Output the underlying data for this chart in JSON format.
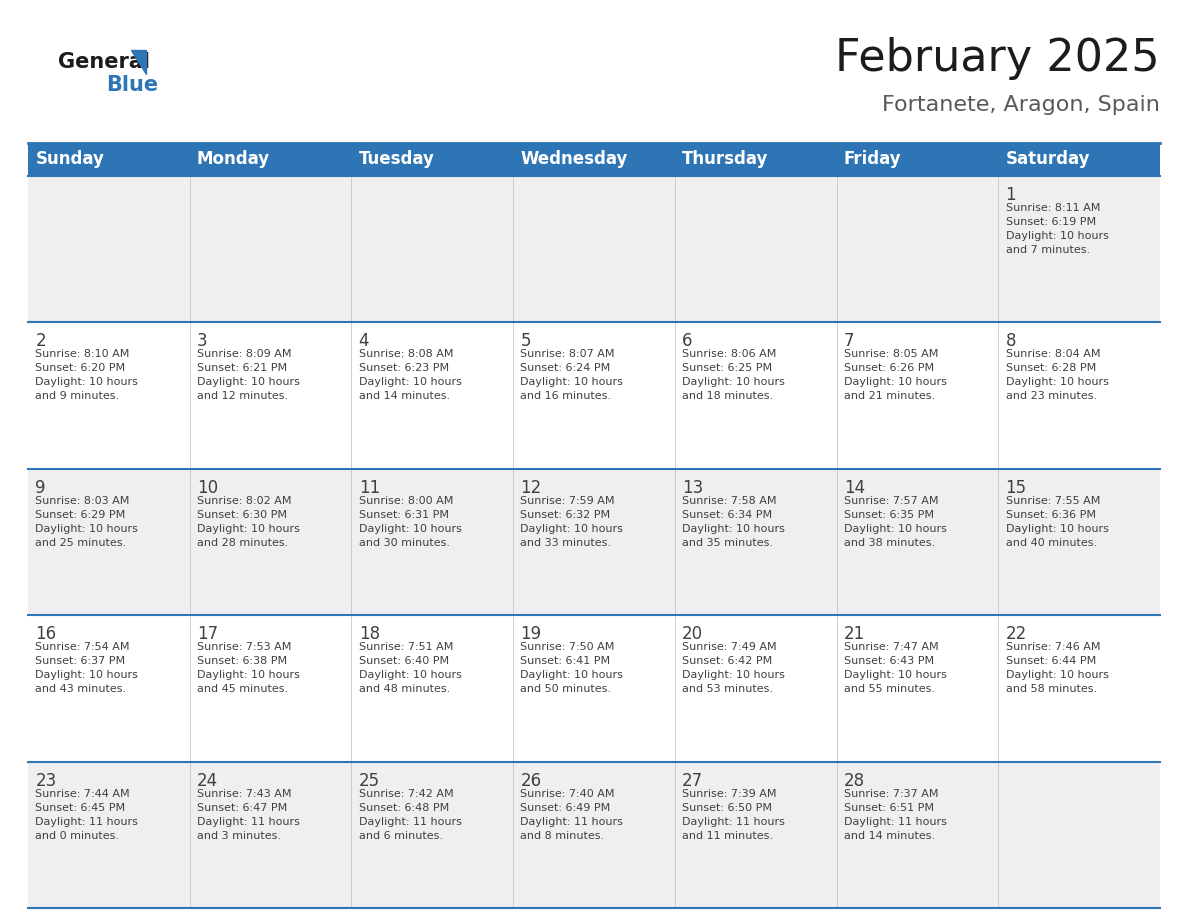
{
  "title": "February 2025",
  "subtitle": "Fortanete, Aragon, Spain",
  "header_bg": "#2E75B6",
  "header_text": "#FFFFFF",
  "row_bg_light": "#FFFFFF",
  "row_bg_gray": "#EFEFEF",
  "separator_color": "#2E75B6",
  "text_color": "#404040",
  "day_number_color": "#2E75B6",
  "day_headers": [
    "Sunday",
    "Monday",
    "Tuesday",
    "Wednesday",
    "Thursday",
    "Friday",
    "Saturday"
  ],
  "weeks": [
    [
      {
        "day": null,
        "info": null
      },
      {
        "day": null,
        "info": null
      },
      {
        "day": null,
        "info": null
      },
      {
        "day": null,
        "info": null
      },
      {
        "day": null,
        "info": null
      },
      {
        "day": null,
        "info": null
      },
      {
        "day": 1,
        "info": "Sunrise: 8:11 AM\nSunset: 6:19 PM\nDaylight: 10 hours\nand 7 minutes."
      }
    ],
    [
      {
        "day": 2,
        "info": "Sunrise: 8:10 AM\nSunset: 6:20 PM\nDaylight: 10 hours\nand 9 minutes."
      },
      {
        "day": 3,
        "info": "Sunrise: 8:09 AM\nSunset: 6:21 PM\nDaylight: 10 hours\nand 12 minutes."
      },
      {
        "day": 4,
        "info": "Sunrise: 8:08 AM\nSunset: 6:23 PM\nDaylight: 10 hours\nand 14 minutes."
      },
      {
        "day": 5,
        "info": "Sunrise: 8:07 AM\nSunset: 6:24 PM\nDaylight: 10 hours\nand 16 minutes."
      },
      {
        "day": 6,
        "info": "Sunrise: 8:06 AM\nSunset: 6:25 PM\nDaylight: 10 hours\nand 18 minutes."
      },
      {
        "day": 7,
        "info": "Sunrise: 8:05 AM\nSunset: 6:26 PM\nDaylight: 10 hours\nand 21 minutes."
      },
      {
        "day": 8,
        "info": "Sunrise: 8:04 AM\nSunset: 6:28 PM\nDaylight: 10 hours\nand 23 minutes."
      }
    ],
    [
      {
        "day": 9,
        "info": "Sunrise: 8:03 AM\nSunset: 6:29 PM\nDaylight: 10 hours\nand 25 minutes."
      },
      {
        "day": 10,
        "info": "Sunrise: 8:02 AM\nSunset: 6:30 PM\nDaylight: 10 hours\nand 28 minutes."
      },
      {
        "day": 11,
        "info": "Sunrise: 8:00 AM\nSunset: 6:31 PM\nDaylight: 10 hours\nand 30 minutes."
      },
      {
        "day": 12,
        "info": "Sunrise: 7:59 AM\nSunset: 6:32 PM\nDaylight: 10 hours\nand 33 minutes."
      },
      {
        "day": 13,
        "info": "Sunrise: 7:58 AM\nSunset: 6:34 PM\nDaylight: 10 hours\nand 35 minutes."
      },
      {
        "day": 14,
        "info": "Sunrise: 7:57 AM\nSunset: 6:35 PM\nDaylight: 10 hours\nand 38 minutes."
      },
      {
        "day": 15,
        "info": "Sunrise: 7:55 AM\nSunset: 6:36 PM\nDaylight: 10 hours\nand 40 minutes."
      }
    ],
    [
      {
        "day": 16,
        "info": "Sunrise: 7:54 AM\nSunset: 6:37 PM\nDaylight: 10 hours\nand 43 minutes."
      },
      {
        "day": 17,
        "info": "Sunrise: 7:53 AM\nSunset: 6:38 PM\nDaylight: 10 hours\nand 45 minutes."
      },
      {
        "day": 18,
        "info": "Sunrise: 7:51 AM\nSunset: 6:40 PM\nDaylight: 10 hours\nand 48 minutes."
      },
      {
        "day": 19,
        "info": "Sunrise: 7:50 AM\nSunset: 6:41 PM\nDaylight: 10 hours\nand 50 minutes."
      },
      {
        "day": 20,
        "info": "Sunrise: 7:49 AM\nSunset: 6:42 PM\nDaylight: 10 hours\nand 53 minutes."
      },
      {
        "day": 21,
        "info": "Sunrise: 7:47 AM\nSunset: 6:43 PM\nDaylight: 10 hours\nand 55 minutes."
      },
      {
        "day": 22,
        "info": "Sunrise: 7:46 AM\nSunset: 6:44 PM\nDaylight: 10 hours\nand 58 minutes."
      }
    ],
    [
      {
        "day": 23,
        "info": "Sunrise: 7:44 AM\nSunset: 6:45 PM\nDaylight: 11 hours\nand 0 minutes."
      },
      {
        "day": 24,
        "info": "Sunrise: 7:43 AM\nSunset: 6:47 PM\nDaylight: 11 hours\nand 3 minutes."
      },
      {
        "day": 25,
        "info": "Sunrise: 7:42 AM\nSunset: 6:48 PM\nDaylight: 11 hours\nand 6 minutes."
      },
      {
        "day": 26,
        "info": "Sunrise: 7:40 AM\nSunset: 6:49 PM\nDaylight: 11 hours\nand 8 minutes."
      },
      {
        "day": 27,
        "info": "Sunrise: 7:39 AM\nSunset: 6:50 PM\nDaylight: 11 hours\nand 11 minutes."
      },
      {
        "day": 28,
        "info": "Sunrise: 7:37 AM\nSunset: 6:51 PM\nDaylight: 11 hours\nand 14 minutes."
      },
      {
        "day": null,
        "info": null
      }
    ]
  ],
  "figsize": [
    11.88,
    9.18
  ],
  "dpi": 100
}
